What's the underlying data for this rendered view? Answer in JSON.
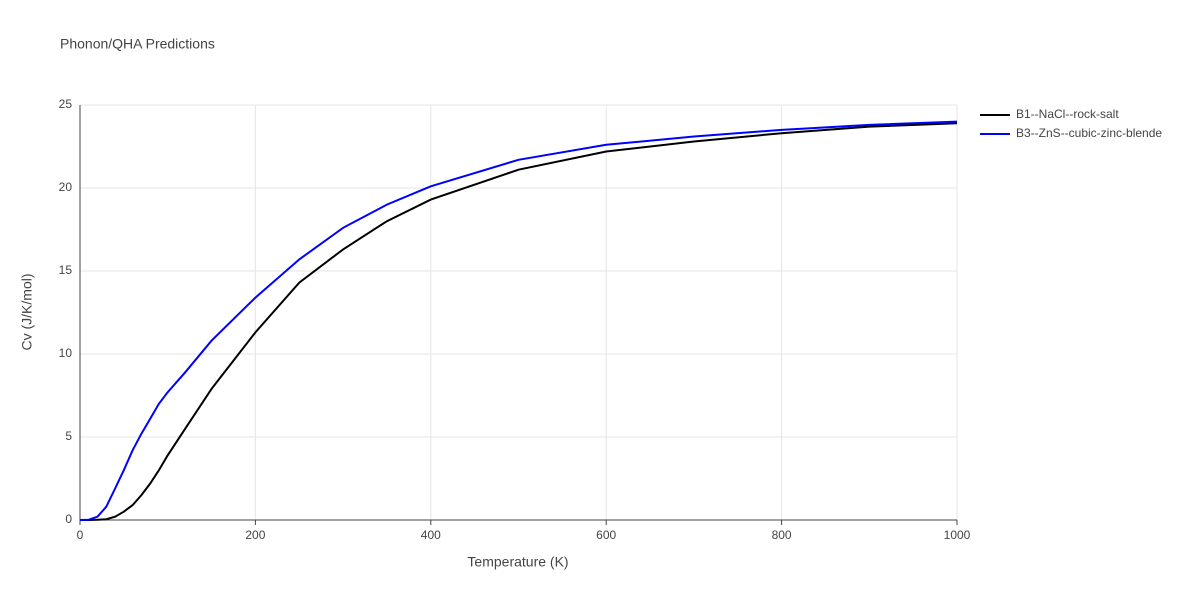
{
  "chart_data": {
    "type": "line",
    "title": "Phonon/QHA Predictions",
    "x_label": "Temperature (K)",
    "y_label": "Cv (J/K/mol)",
    "x": [
      0,
      10,
      20,
      30,
      40,
      50,
      60,
      70,
      80,
      90,
      100,
      120,
      150,
      200,
      250,
      300,
      350,
      400,
      500,
      600,
      700,
      800,
      900,
      1000
    ],
    "series": [
      {
        "name": "B1--NaCl--rock-salt",
        "color": "#000000",
        "values": [
          0,
          0,
          0.02,
          0.05,
          0.2,
          0.5,
          0.9,
          1.5,
          2.2,
          3.0,
          3.9,
          5.5,
          7.9,
          11.3,
          14.3,
          16.3,
          18.0,
          19.3,
          21.1,
          22.2,
          22.8,
          23.3,
          23.7,
          23.9
        ]
      },
      {
        "name": "B3--ZnS--cubic-zinc-blende",
        "color": "#0000ff",
        "values": [
          0,
          0.02,
          0.2,
          0.8,
          1.9,
          3.0,
          4.2,
          5.2,
          6.1,
          7.0,
          7.7,
          8.9,
          10.8,
          13.4,
          15.7,
          17.6,
          19.0,
          20.1,
          21.7,
          22.6,
          23.1,
          23.5,
          23.8,
          24.0
        ]
      }
    ],
    "xlim": [
      0,
      1000
    ],
    "xticks": [
      0,
      200,
      400,
      600,
      800,
      1000
    ],
    "ylim": [
      0,
      25
    ],
    "yticks": [
      0,
      5,
      10,
      15,
      20,
      25
    ],
    "grid": true,
    "legend": "right"
  }
}
